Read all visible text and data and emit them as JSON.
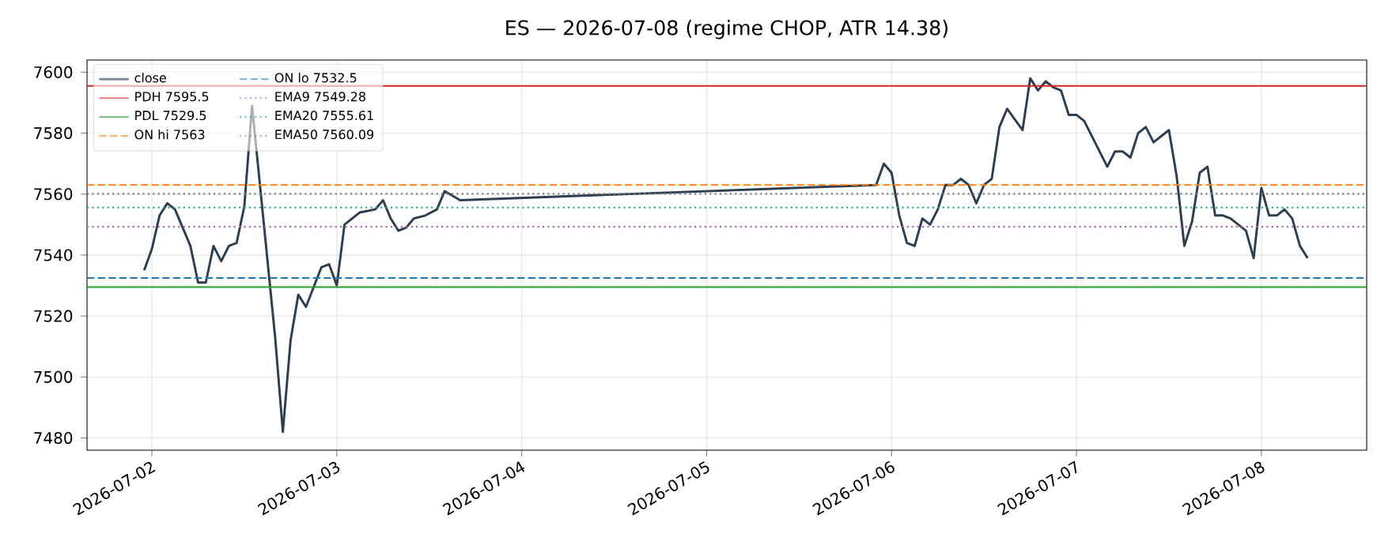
{
  "chart_data": {
    "type": "line",
    "title": "ES — 2026-07-08  (regime CHOP, ATR 14.38)",
    "x": [
      "2026-07-01T23:00",
      "2026-07-02T00:00",
      "2026-07-02T01:00",
      "2026-07-02T02:00",
      "2026-07-02T03:00",
      "2026-07-02T05:00",
      "2026-07-02T06:00",
      "2026-07-02T07:00",
      "2026-07-02T08:00",
      "2026-07-02T09:00",
      "2026-07-02T10:00",
      "2026-07-02T11:00",
      "2026-07-02T12:00",
      "2026-07-02T13:00",
      "2026-07-02T14:30",
      "2026-07-02T16:00",
      "2026-07-02T17:00",
      "2026-07-02T18:00",
      "2026-07-02T19:00",
      "2026-07-02T20:00",
      "2026-07-02T22:00",
      "2026-07-02T23:00",
      "2026-07-03T00:00",
      "2026-07-03T01:00",
      "2026-07-03T02:00",
      "2026-07-03T03:00",
      "2026-07-03T05:00",
      "2026-07-03T06:00",
      "2026-07-03T07:00",
      "2026-07-03T08:00",
      "2026-07-03T09:00",
      "2026-07-03T10:00",
      "2026-07-03T11:30",
      "2026-07-03T13:00",
      "2026-07-03T14:00",
      "2026-07-03T16:00",
      "2026-07-05T22:00",
      "2026-07-05T23:00",
      "2026-07-06T00:00",
      "2026-07-06T01:00",
      "2026-07-06T02:00",
      "2026-07-06T03:00",
      "2026-07-06T04:00",
      "2026-07-06T05:00",
      "2026-07-06T06:00",
      "2026-07-06T07:00",
      "2026-07-06T08:00",
      "2026-07-06T09:00",
      "2026-07-06T10:00",
      "2026-07-06T11:00",
      "2026-07-06T12:00",
      "2026-07-06T13:00",
      "2026-07-06T14:00",
      "2026-07-06T15:00",
      "2026-07-06T17:00",
      "2026-07-06T18:00",
      "2026-07-06T19:00",
      "2026-07-06T20:00",
      "2026-07-06T21:00",
      "2026-07-06T22:00",
      "2026-07-06T23:00",
      "2026-07-07T00:00",
      "2026-07-07T01:00",
      "2026-07-07T04:00",
      "2026-07-07T05:00",
      "2026-07-07T06:00",
      "2026-07-07T07:00",
      "2026-07-07T08:00",
      "2026-07-07T09:00",
      "2026-07-07T10:00",
      "2026-07-07T12:00",
      "2026-07-07T13:00",
      "2026-07-07T14:00",
      "2026-07-07T15:00",
      "2026-07-07T16:00",
      "2026-07-07T17:00",
      "2026-07-07T18:00",
      "2026-07-07T19:00",
      "2026-07-07T20:00",
      "2026-07-07T22:00",
      "2026-07-07T23:00",
      "2026-07-08T00:00",
      "2026-07-08T01:00",
      "2026-07-08T02:00",
      "2026-07-08T03:00",
      "2026-07-08T04:00",
      "2026-07-08T05:00",
      "2026-07-08T06:00"
    ],
    "series": [
      {
        "name": "close",
        "color": "#2c3e50",
        "values": [
          7535,
          7542,
          7553,
          7557,
          7555,
          7543,
          7531,
          7531,
          7543,
          7538,
          7543,
          7544,
          7556,
          7589,
          7551,
          7513,
          7482,
          7512,
          7527,
          7523,
          7536,
          7537,
          7530,
          7550,
          7552,
          7554,
          7555,
          7558,
          7552,
          7548,
          7549,
          7552,
          7553,
          7555,
          7561,
          7558,
          7563,
          7570,
          7567,
          7553,
          7544,
          7543,
          7552,
          7550,
          7555,
          7563,
          7563,
          7565,
          7563,
          7557,
          7563,
          7565,
          7582,
          7588,
          7581,
          7598,
          7594,
          7597,
          7595,
          7594,
          7586,
          7586,
          7584,
          7569,
          7574,
          7574,
          7572,
          7580,
          7582,
          7577,
          7581,
          7566,
          7543,
          7551,
          7567,
          7569,
          7553,
          7553,
          7552,
          7548,
          7539,
          7562,
          7553,
          7553,
          7555,
          7552,
          7543,
          7539
        ]
      }
    ],
    "ref_lines": [
      {
        "axis": "y",
        "value": 7595.5,
        "label": "PDH 7595.5",
        "color": "#d62728",
        "line_style": "solid"
      },
      {
        "axis": "y",
        "value": 7529.5,
        "label": "PDL 7529.5",
        "color": "#2ca02c",
        "line_style": "solid"
      },
      {
        "axis": "y",
        "value": 7563,
        "label": "ON hi 7563",
        "color": "#ff7f0e",
        "line_style": "dashed"
      },
      {
        "axis": "y",
        "value": 7532.5,
        "label": "ON lo 7532.5",
        "color": "#1f77b4",
        "line_style": "dashed"
      },
      {
        "axis": "y",
        "value": 7549.28,
        "label": "EMA9 7549.28",
        "color": "#9467bd",
        "line_style": "dotted"
      },
      {
        "axis": "y",
        "value": 7555.61,
        "label": "EMA20 7555.61",
        "color": "#17a085",
        "line_style": "dotted"
      },
      {
        "axis": "y",
        "value": 7560.09,
        "label": "EMA50 7560.09",
        "color": "#7f7f7f",
        "line_style": "dotted"
      }
    ],
    "xlim": [
      "2026-07-01T15:35",
      "2026-07-08T13:40"
    ],
    "ylim": [
      7476,
      7604
    ],
    "xticks": [
      "2026-07-02",
      "2026-07-03",
      "2026-07-04",
      "2026-07-05",
      "2026-07-06",
      "2026-07-07",
      "2026-07-08"
    ],
    "yticks": [
      7480,
      7500,
      7520,
      7540,
      7560,
      7580,
      7600
    ],
    "grid": true,
    "legend": "top left",
    "line_style": "solid",
    "marker": "none"
  }
}
